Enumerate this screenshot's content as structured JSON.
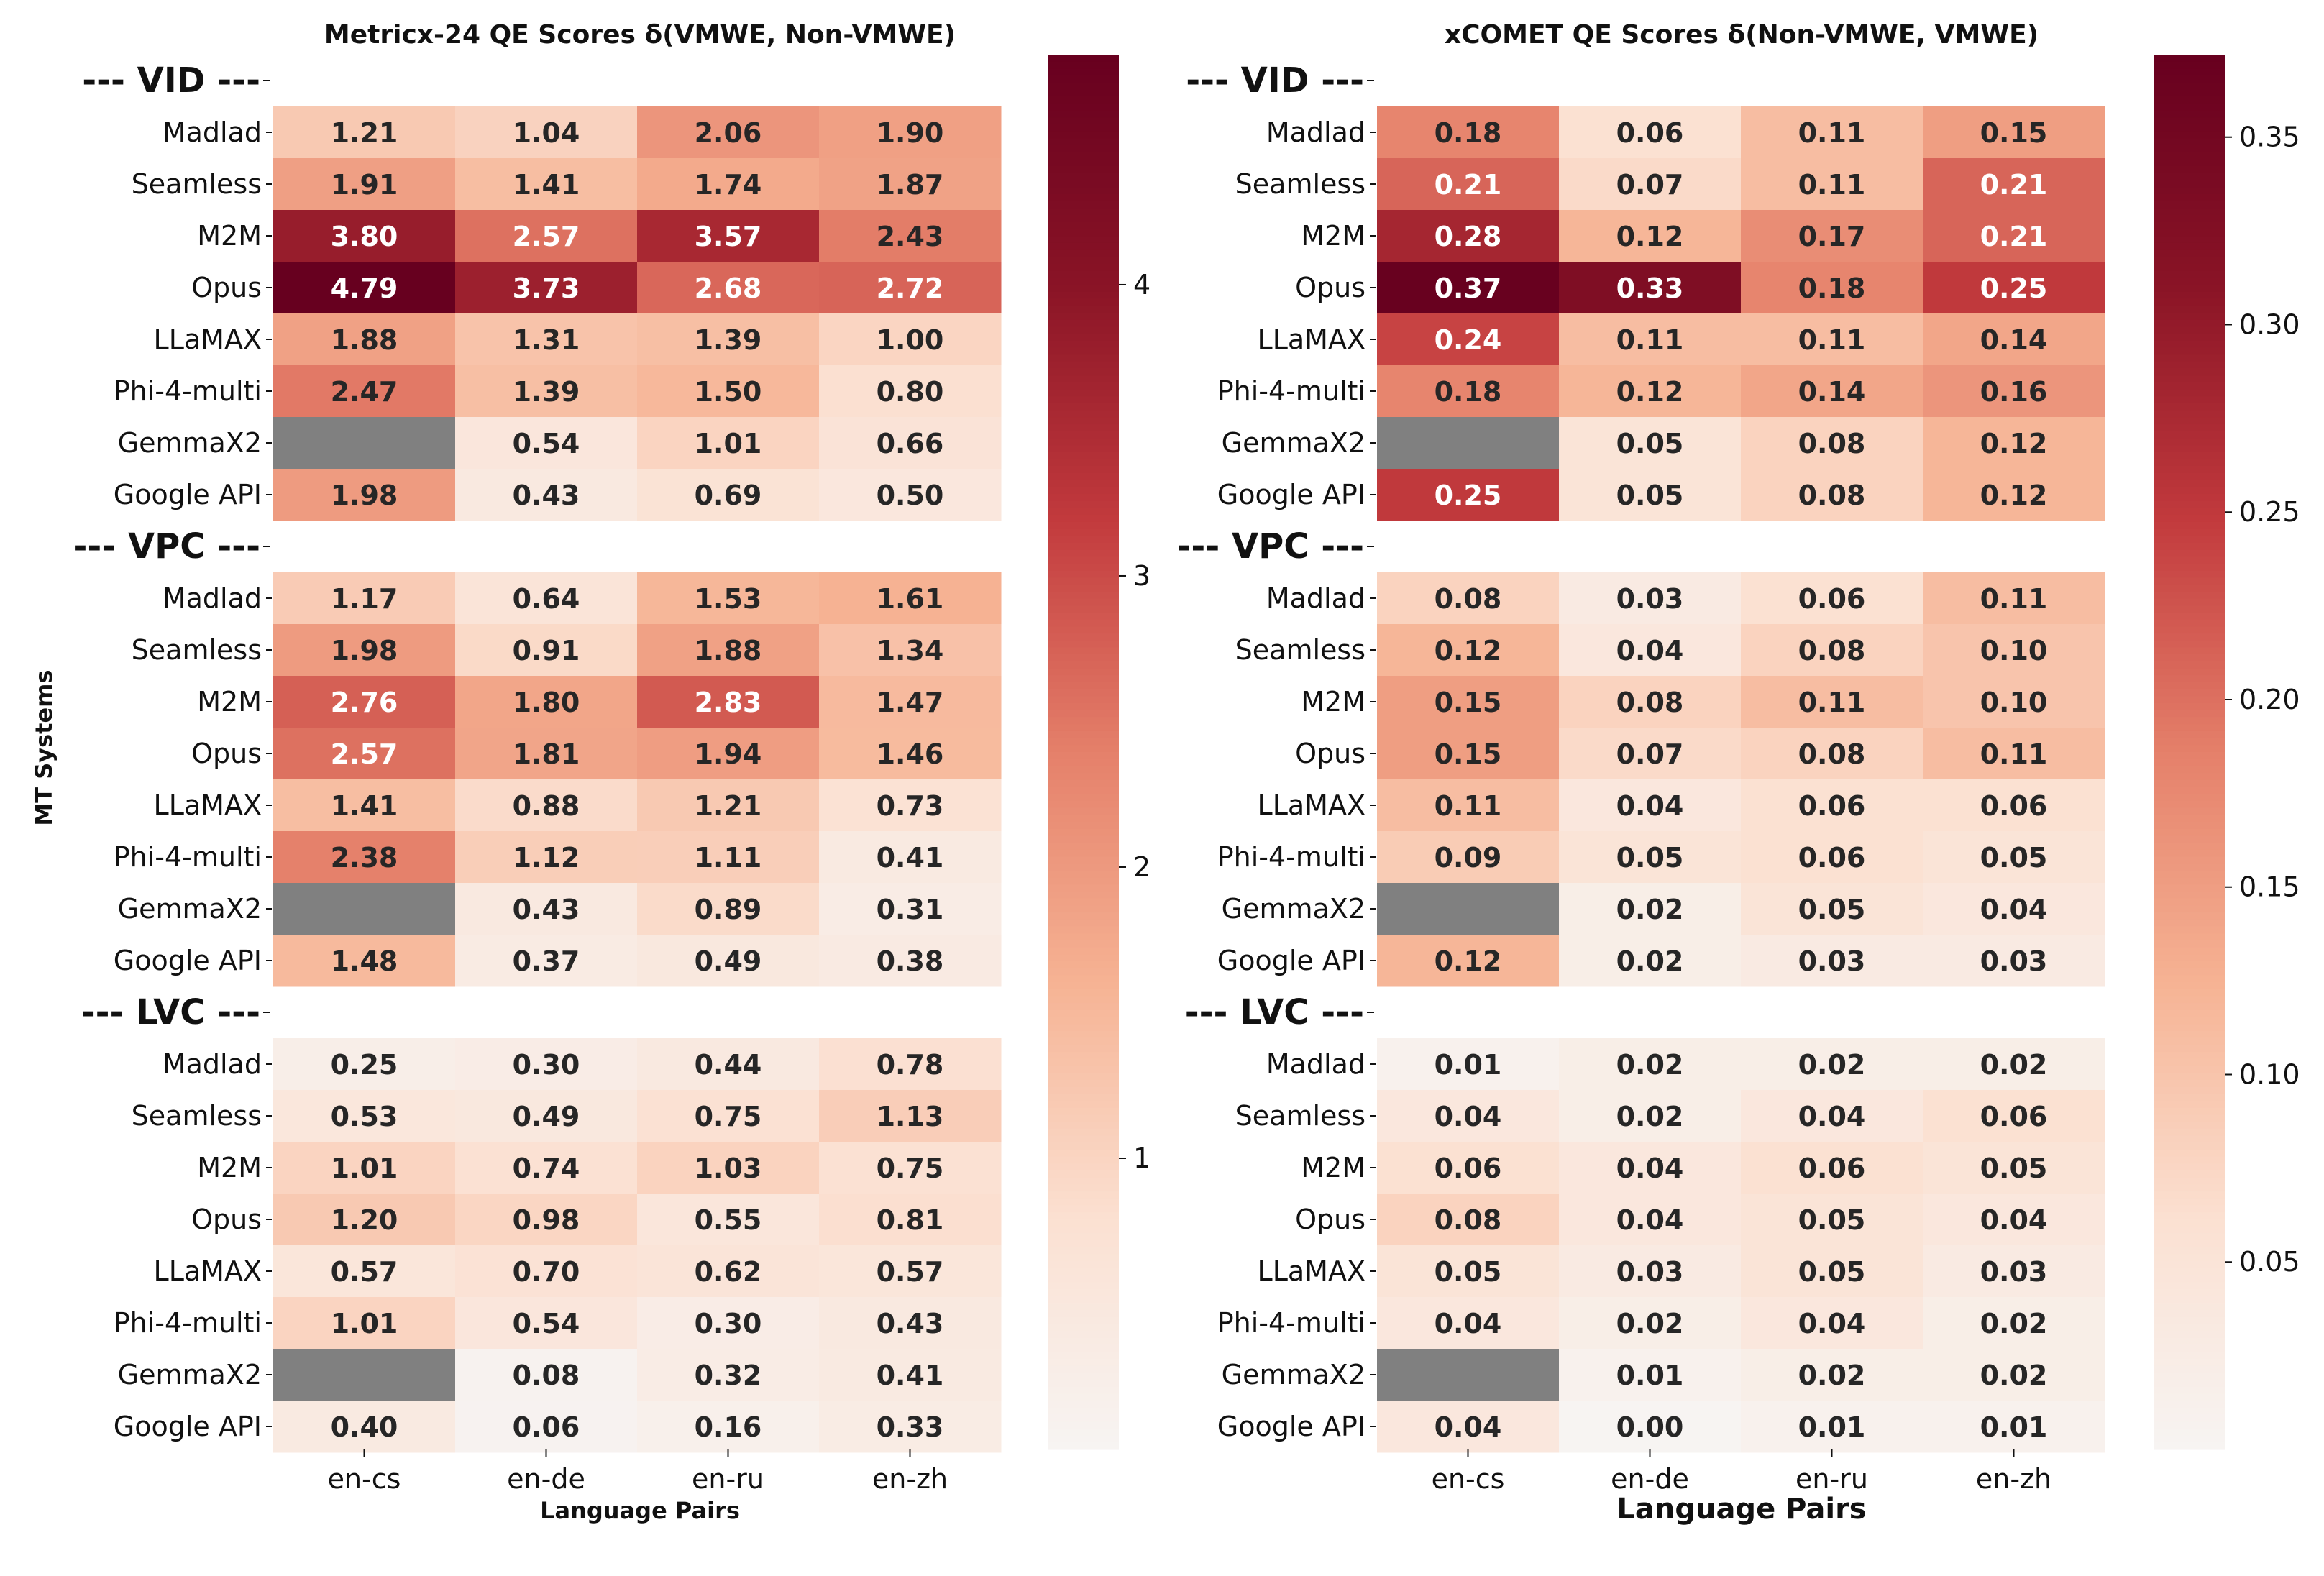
{
  "chart_data": [
    {
      "type": "heatmap",
      "title": "Metricx-24 QE Scores δ(VMWE, Non-VMWE)",
      "xlabel": "Language Pairs",
      "ylabel": "MT Systems",
      "categories": [
        "en-cs",
        "en-de",
        "en-ru",
        "en-zh"
      ],
      "colorbar": {
        "min": 0.0,
        "max": 4.79,
        "ticks": [
          "1",
          "2",
          "3",
          "4"
        ]
      },
      "groups": [
        {
          "label": "--- VID ---",
          "rows": [
            {
              "system": "Madlad",
              "values": [
                "1.21",
                "1.04",
                "2.06",
                "1.90"
              ]
            },
            {
              "system": "Seamless",
              "values": [
                "1.91",
                "1.41",
                "1.74",
                "1.87"
              ]
            },
            {
              "system": "M2M",
              "values": [
                "3.80",
                "2.57",
                "3.57",
                "2.43"
              ]
            },
            {
              "system": "Opus",
              "values": [
                "4.79",
                "3.73",
                "2.68",
                "2.72"
              ]
            },
            {
              "system": "LLaMAX",
              "values": [
                "1.88",
                "1.31",
                "1.39",
                "1.00"
              ]
            },
            {
              "system": "Phi-4-multi",
              "values": [
                "2.47",
                "1.39",
                "1.50",
                "0.80"
              ]
            },
            {
              "system": "GemmaX2",
              "values": [
                null,
                "0.54",
                "1.01",
                "0.66"
              ]
            },
            {
              "system": "Google API",
              "values": [
                "1.98",
                "0.43",
                "0.69",
                "0.50"
              ]
            }
          ]
        },
        {
          "label": "--- VPC ---",
          "rows": [
            {
              "system": "Madlad",
              "values": [
                "1.17",
                "0.64",
                "1.53",
                "1.61"
              ]
            },
            {
              "system": "Seamless",
              "values": [
                "1.98",
                "0.91",
                "1.88",
                "1.34"
              ]
            },
            {
              "system": "M2M",
              "values": [
                "2.76",
                "1.80",
                "2.83",
                "1.47"
              ]
            },
            {
              "system": "Opus",
              "values": [
                "2.57",
                "1.81",
                "1.94",
                "1.46"
              ]
            },
            {
              "system": "LLaMAX",
              "values": [
                "1.41",
                "0.88",
                "1.21",
                "0.73"
              ]
            },
            {
              "system": "Phi-4-multi",
              "values": [
                "2.38",
                "1.12",
                "1.11",
                "0.41"
              ]
            },
            {
              "system": "GemmaX2",
              "values": [
                null,
                "0.43",
                "0.89",
                "0.31"
              ]
            },
            {
              "system": "Google API",
              "values": [
                "1.48",
                "0.37",
                "0.49",
                "0.38"
              ]
            }
          ]
        },
        {
          "label": "--- LVC ---",
          "rows": [
            {
              "system": "Madlad",
              "values": [
                "0.25",
                "0.30",
                "0.44",
                "0.78"
              ]
            },
            {
              "system": "Seamless",
              "values": [
                "0.53",
                "0.49",
                "0.75",
                "1.13"
              ]
            },
            {
              "system": "M2M",
              "values": [
                "1.01",
                "0.74",
                "1.03",
                "0.75"
              ]
            },
            {
              "system": "Opus",
              "values": [
                "1.20",
                "0.98",
                "0.55",
                "0.81"
              ]
            },
            {
              "system": "LLaMAX",
              "values": [
                "0.57",
                "0.70",
                "0.62",
                "0.57"
              ]
            },
            {
              "system": "Phi-4-multi",
              "values": [
                "1.01",
                "0.54",
                "0.30",
                "0.43"
              ]
            },
            {
              "system": "GemmaX2",
              "values": [
                null,
                "0.08",
                "0.32",
                "0.41"
              ]
            },
            {
              "system": "Google API",
              "values": [
                "0.40",
                "0.06",
                "0.16",
                "0.33"
              ]
            }
          ]
        }
      ]
    },
    {
      "type": "heatmap",
      "title": "xCOMET QE Scores δ(Non-VMWE, VMWE)",
      "xlabel": "Language Pairs",
      "ylabel": "",
      "categories": [
        "en-cs",
        "en-de",
        "en-ru",
        "en-zh"
      ],
      "colorbar": {
        "min": 0.0,
        "max": 0.372,
        "ticks": [
          "0.05",
          "0.10",
          "0.15",
          "0.20",
          "0.25",
          "0.30",
          "0.35"
        ]
      },
      "groups": [
        {
          "label": "--- VID ---",
          "rows": [
            {
              "system": "Madlad",
              "values": [
                "0.18",
                "0.06",
                "0.11",
                "0.15"
              ]
            },
            {
              "system": "Seamless",
              "values": [
                "0.21",
                "0.07",
                "0.11",
                "0.21"
              ]
            },
            {
              "system": "M2M",
              "values": [
                "0.28",
                "0.12",
                "0.17",
                "0.21"
              ]
            },
            {
              "system": "Opus",
              "values": [
                "0.37",
                "0.33",
                "0.18",
                "0.25"
              ]
            },
            {
              "system": "LLaMAX",
              "values": [
                "0.24",
                "0.11",
                "0.11",
                "0.14"
              ]
            },
            {
              "system": "Phi-4-multi",
              "values": [
                "0.18",
                "0.12",
                "0.14",
                "0.16"
              ]
            },
            {
              "system": "GemmaX2",
              "values": [
                null,
                "0.05",
                "0.08",
                "0.12"
              ]
            },
            {
              "system": "Google API",
              "values": [
                "0.25",
                "0.05",
                "0.08",
                "0.12"
              ]
            }
          ]
        },
        {
          "label": "--- VPC ---",
          "rows": [
            {
              "system": "Madlad",
              "values": [
                "0.08",
                "0.03",
                "0.06",
                "0.11"
              ]
            },
            {
              "system": "Seamless",
              "values": [
                "0.12",
                "0.04",
                "0.08",
                "0.10"
              ]
            },
            {
              "system": "M2M",
              "values": [
                "0.15",
                "0.08",
                "0.11",
                "0.10"
              ]
            },
            {
              "system": "Opus",
              "values": [
                "0.15",
                "0.07",
                "0.08",
                "0.11"
              ]
            },
            {
              "system": "LLaMAX",
              "values": [
                "0.11",
                "0.04",
                "0.06",
                "0.06"
              ]
            },
            {
              "system": "Phi-4-multi",
              "values": [
                "0.09",
                "0.05",
                "0.06",
                "0.05"
              ]
            },
            {
              "system": "GemmaX2",
              "values": [
                null,
                "0.02",
                "0.05",
                "0.04"
              ]
            },
            {
              "system": "Google API",
              "values": [
                "0.12",
                "0.02",
                "0.03",
                "0.03"
              ]
            }
          ]
        },
        {
          "label": "--- LVC ---",
          "rows": [
            {
              "system": "Madlad",
              "values": [
                "0.01",
                "0.02",
                "0.02",
                "0.02"
              ]
            },
            {
              "system": "Seamless",
              "values": [
                "0.04",
                "0.02",
                "0.04",
                "0.06"
              ]
            },
            {
              "system": "M2M",
              "values": [
                "0.06",
                "0.04",
                "0.06",
                "0.05"
              ]
            },
            {
              "system": "Opus",
              "values": [
                "0.08",
                "0.04",
                "0.05",
                "0.04"
              ]
            },
            {
              "system": "LLaMAX",
              "values": [
                "0.05",
                "0.03",
                "0.05",
                "0.03"
              ]
            },
            {
              "system": "Phi-4-multi",
              "values": [
                "0.04",
                "0.02",
                "0.04",
                "0.02"
              ]
            },
            {
              "system": "GemmaX2",
              "values": [
                null,
                "0.01",
                "0.02",
                "0.02"
              ]
            },
            {
              "system": "Google API",
              "values": [
                "0.04",
                "0.00",
                "0.01",
                "0.01"
              ]
            }
          ]
        }
      ]
    }
  ],
  "colors": {
    "missing_cell": "#808080",
    "scale": [
      "#f7f4f2",
      "#fbe0d1",
      "#f6b394",
      "#e5806a",
      "#c23a3d",
      "#8a1426",
      "#67001f"
    ]
  }
}
